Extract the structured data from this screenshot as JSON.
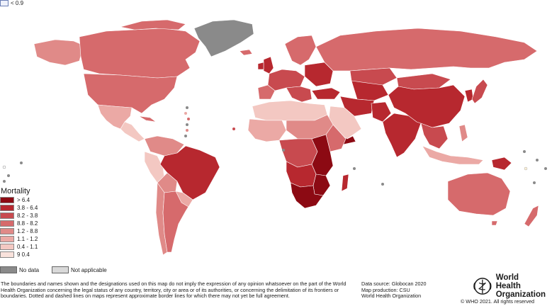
{
  "top_legend": {
    "label": "< 0.9"
  },
  "legend": {
    "title": "Mortality",
    "classes": [
      {
        "label": "> 6.4",
        "color": "#8c0a13"
      },
      {
        "label": "3.8 - 6.4",
        "color": "#b7282f"
      },
      {
        "label": "8.2 - 3.8",
        "color": "#c84a4f"
      },
      {
        "label": "8.8 - 8.2",
        "color": "#d66a6c"
      },
      {
        "label": "1.2 - 8.8",
        "color": "#e08a88"
      },
      {
        "label": "1.1 - 1.2",
        "color": "#eba9a5"
      },
      {
        "label": "0.4 - 1.1",
        "color": "#f3c8c2"
      },
      {
        "label": "9 0.4",
        "color": "#f9e2dc"
      }
    ]
  },
  "status": {
    "no_data_label": "No data",
    "no_data_color": "#8a8a8a",
    "not_applicable_label": "Not applicable",
    "not_applicable_color": "#d9d9d9"
  },
  "disclaimer": "The boundaries and names shown and the designations used on this map do not imply the expression of any opinion whatsoever on the part of the World Health Organization concerning the legal status of any country, territory, city or area or of its authorities, or concerning the delimitation of its frontiers or boundaries. Dotted and dashed lines on maps represent approximate border lines for which there may not yet be full agreement.",
  "source": {
    "data_source": "Data source: Globocan 2020",
    "map_production": "Map production: CSU",
    "organization": "World Health Organization"
  },
  "logo": {
    "line1": "World Health",
    "line2": "Organization"
  },
  "copyright": "© WHO 2021. All rights reserved"
}
